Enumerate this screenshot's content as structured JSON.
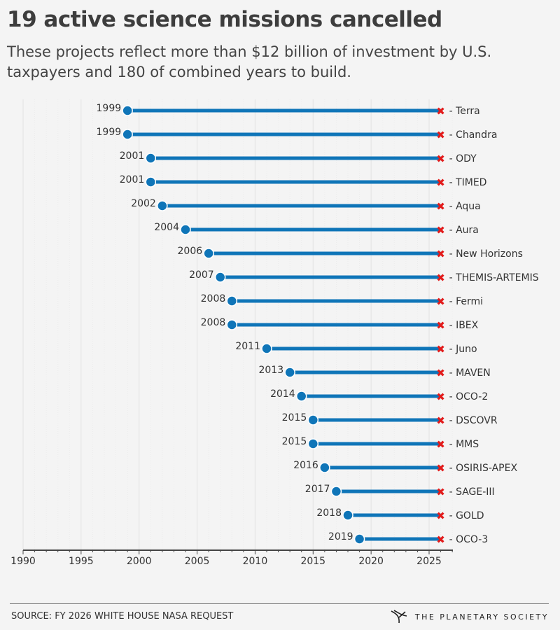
{
  "header": {
    "title": "19 active science missions cancelled",
    "subtitle": "These projects reflect more than $12 billion of investment by U.S. taxpayers and 180 of combined years to build."
  },
  "chart_data": {
    "type": "dumbbell",
    "end_year": 2026,
    "end_marker": "✖",
    "label_prefix": "- ",
    "xlim": [
      1990,
      2027
    ],
    "xticks": [
      1990,
      1995,
      2000,
      2005,
      2010,
      2015,
      2020,
      2025
    ],
    "grid": true,
    "colors": {
      "line": "#0f75b8",
      "dot": "#0f75b8",
      "cross": "#e21b1b",
      "axis": "#444444"
    },
    "missions": [
      {
        "name": "Terra",
        "start": 1999
      },
      {
        "name": "Chandra",
        "start": 1999
      },
      {
        "name": "ODY",
        "start": 2001
      },
      {
        "name": "TIMED",
        "start": 2001
      },
      {
        "name": "Aqua",
        "start": 2002
      },
      {
        "name": "Aura",
        "start": 2004
      },
      {
        "name": "New Horizons",
        "start": 2006
      },
      {
        "name": "THEMIS-ARTEMIS",
        "start": 2007
      },
      {
        "name": "Fermi",
        "start": 2008
      },
      {
        "name": "IBEX",
        "start": 2008
      },
      {
        "name": "Juno",
        "start": 2011
      },
      {
        "name": "MAVEN",
        "start": 2013
      },
      {
        "name": "OCO-2",
        "start": 2014
      },
      {
        "name": "DSCOVR",
        "start": 2015
      },
      {
        "name": "MMS",
        "start": 2015
      },
      {
        "name": "OSIRIS-APEX",
        "start": 2016
      },
      {
        "name": "SAGE-III",
        "start": 2017
      },
      {
        "name": "GOLD",
        "start": 2018
      },
      {
        "name": "OCO-3",
        "start": 2019
      }
    ]
  },
  "footer": {
    "source": "SOURCE: FY 2026 WHITE HOUSE NASA REQUEST",
    "brand": "THE PLANETARY SOCIETY",
    "brand_icon": "planetary-society-logo"
  }
}
